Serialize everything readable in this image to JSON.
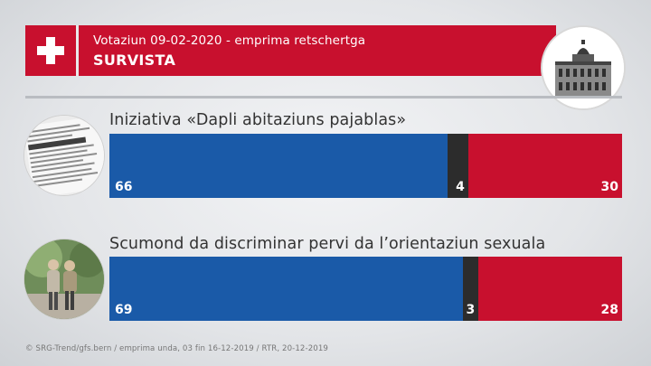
{
  "header": {
    "subtitle": "Votaziun 09-02-2020 - emprima retschertga",
    "title": "SURVISTA"
  },
  "icons": {
    "flag": "swiss-flag-icon",
    "building": "federal-palace-icon",
    "topic1": "newspaper-ads-image",
    "topic2": "couple-walking-image"
  },
  "colors": {
    "yes": "#1a5aa8",
    "neutral": "#2c2c2c",
    "no": "#c8102e"
  },
  "chart_data": [
    {
      "type": "bar",
      "title": "Iniziativa «Dapli abitaziuns pajablas»",
      "values": [
        66,
        4,
        30
      ],
      "labels": [
        "66",
        "4",
        "30"
      ]
    },
    {
      "type": "bar",
      "title": "Scumond da discriminar pervi da l’orientaziun sexuala",
      "values": [
        69,
        3,
        28
      ],
      "labels": [
        "69",
        "3",
        "28"
      ]
    }
  ],
  "footer": "© SRG-Trend/gfs.bern  /  emprima unda, 03 fin 16-12-2019  / RTR, 20-12-2019"
}
